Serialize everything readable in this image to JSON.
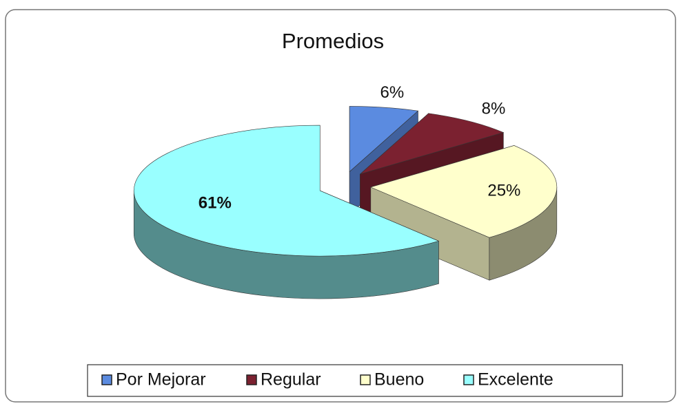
{
  "chart_data": {
    "type": "pie",
    "title": "Promedios",
    "categories": [
      "Por Mejorar",
      "Regular",
      "Bueno",
      "Excelente"
    ],
    "values": [
      6,
      8,
      25,
      61
    ],
    "value_labels": [
      "6%",
      "8%",
      "25%",
      "61%"
    ],
    "colors": [
      "#5b8be0",
      "#7b2130",
      "#ffffcc",
      "#99ffff"
    ],
    "legend": "bottom"
  }
}
